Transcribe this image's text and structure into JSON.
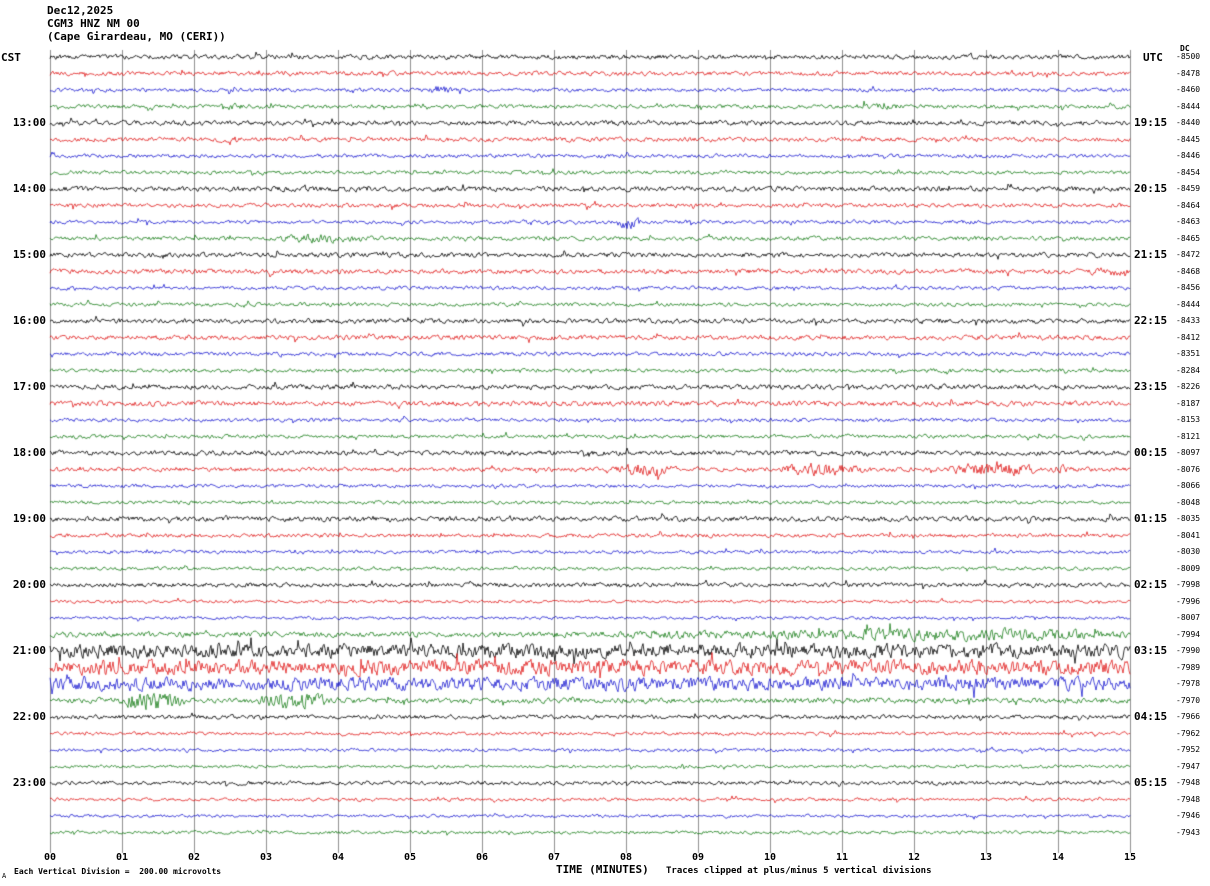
{
  "header": {
    "date": "Dec12,2025",
    "station": "CGM3 HNZ NM 00",
    "location": "(Cape Girardeau, MO (CERI))"
  },
  "axes": {
    "left_tz": "CST",
    "right_tz": "UTC",
    "dc_header": "DC",
    "minute_labels": [
      "00",
      "01",
      "02",
      "03",
      "04",
      "05",
      "06",
      "07",
      "08",
      "09",
      "10",
      "11",
      "12",
      "13",
      "14",
      "15"
    ],
    "xlabel": "TIME (MINUTES)",
    "clip_note": "Traces clipped at plus/minus 5 vertical divisions",
    "scale_note": "Each Vertical Division =  200.00 microvolts",
    "corner_mark": "A"
  },
  "chart_data": {
    "type": "line",
    "title": "CGM3 HNZ NM 00 (Cape Girardeau, MO (CERI)) helicorder Dec12,2025",
    "xlabel": "TIME (MINUTES)",
    "x_range_minutes": [
      0,
      15
    ],
    "rows": 48,
    "minutes_per_row": 15,
    "grid": true,
    "colors": {
      "black": "#000000",
      "red": "#dd0000",
      "blue": "#0000cc",
      "green": "#007000",
      "grid": "#909090"
    },
    "traces": [
      {
        "color": "black",
        "dc": -8500,
        "amp": 2.0,
        "bursts": []
      },
      {
        "color": "red",
        "dc": -8478,
        "amp": 1.9,
        "bursts": []
      },
      {
        "color": "blue",
        "dc": -8460,
        "amp": 1.6,
        "bursts": [
          {
            "s": 5.2,
            "e": 5.6,
            "a": 2.5
          }
        ]
      },
      {
        "color": "green",
        "dc": -8444,
        "amp": 1.7,
        "bursts": [
          {
            "s": 2.3,
            "e": 2.8,
            "a": 1.5
          },
          {
            "s": 11.0,
            "e": 12.0,
            "a": 1.2
          }
        ]
      },
      {
        "color": "black",
        "dc": -8440,
        "label_cst": "13:00",
        "label_utc": "19:15",
        "amp": 2.0,
        "bursts": []
      },
      {
        "color": "red",
        "dc": -8445,
        "amp": 1.9,
        "bursts": [
          {
            "s": 2.3,
            "e": 2.7,
            "a": 2.0
          }
        ]
      },
      {
        "color": "blue",
        "dc": -8446,
        "amp": 1.6,
        "bursts": []
      },
      {
        "color": "green",
        "dc": -8454,
        "amp": 1.6,
        "bursts": []
      },
      {
        "color": "black",
        "dc": -8459,
        "label_cst": "14:00",
        "label_utc": "20:15",
        "amp": 2.2,
        "bursts": []
      },
      {
        "color": "red",
        "dc": -8464,
        "amp": 1.8,
        "bursts": []
      },
      {
        "color": "blue",
        "dc": -8463,
        "amp": 1.6,
        "bursts": [
          {
            "s": 7.85,
            "e": 8.2,
            "a": 5.0
          }
        ]
      },
      {
        "color": "green",
        "dc": -8465,
        "amp": 1.8,
        "bursts": [
          {
            "s": 3.1,
            "e": 4.3,
            "a": 2.5
          }
        ]
      },
      {
        "color": "black",
        "dc": -8472,
        "label_cst": "15:00",
        "label_utc": "21:15",
        "amp": 2.1,
        "bursts": []
      },
      {
        "color": "red",
        "dc": -8468,
        "amp": 2.1,
        "bursts": [
          {
            "s": 14.4,
            "e": 15.0,
            "a": 2.0
          }
        ]
      },
      {
        "color": "blue",
        "dc": -8456,
        "amp": 1.6,
        "bursts": []
      },
      {
        "color": "green",
        "dc": -8444,
        "amp": 1.6,
        "bursts": []
      },
      {
        "color": "black",
        "dc": -8433,
        "label_cst": "16:00",
        "label_utc": "22:15",
        "amp": 2.1,
        "bursts": []
      },
      {
        "color": "red",
        "dc": -8412,
        "amp": 2.1,
        "bursts": []
      },
      {
        "color": "blue",
        "dc": -8351,
        "amp": 1.7,
        "bursts": []
      },
      {
        "color": "green",
        "dc": -8284,
        "amp": 1.6,
        "bursts": []
      },
      {
        "color": "black",
        "dc": -8226,
        "label_cst": "17:00",
        "label_utc": "23:15",
        "amp": 2.1,
        "bursts": []
      },
      {
        "color": "red",
        "dc": -8187,
        "amp": 2.2,
        "bursts": []
      },
      {
        "color": "blue",
        "dc": -8153,
        "amp": 1.6,
        "bursts": []
      },
      {
        "color": "green",
        "dc": -8121,
        "amp": 1.6,
        "bursts": []
      },
      {
        "color": "black",
        "dc": -8097,
        "label_cst": "18:00",
        "label_utc": "00:15",
        "amp": 2.1,
        "bursts": []
      },
      {
        "color": "red",
        "dc": -8076,
        "amp": 1.9,
        "bursts": [
          {
            "s": 7.8,
            "e": 8.7,
            "a": 4.5
          },
          {
            "s": 10.1,
            "e": 11.3,
            "a": 4.5
          },
          {
            "s": 12.5,
            "e": 13.7,
            "a": 6.0
          },
          {
            "s": 13.9,
            "e": 14.2,
            "a": 2.5
          }
        ]
      },
      {
        "color": "blue",
        "dc": -8066,
        "amp": 1.5,
        "bursts": []
      },
      {
        "color": "green",
        "dc": -8048,
        "amp": 1.5,
        "bursts": []
      },
      {
        "color": "black",
        "dc": -8035,
        "label_cst": "19:00",
        "label_utc": "01:15",
        "amp": 2.2,
        "bursts": []
      },
      {
        "color": "red",
        "dc": -8041,
        "amp": 1.7,
        "bursts": []
      },
      {
        "color": "blue",
        "dc": -8030,
        "amp": 1.5,
        "bursts": []
      },
      {
        "color": "green",
        "dc": -8009,
        "amp": 1.5,
        "bursts": []
      },
      {
        "color": "black",
        "dc": -7998,
        "label_cst": "20:00",
        "label_utc": "02:15",
        "amp": 1.9,
        "bursts": []
      },
      {
        "color": "red",
        "dc": -7996,
        "amp": 1.3,
        "bursts": []
      },
      {
        "color": "blue",
        "dc": -8007,
        "amp": 1.3,
        "bursts": []
      },
      {
        "color": "green",
        "dc": -7994,
        "amp": 2.3,
        "bursts": [
          {
            "s": 7.5,
            "e": 15.0,
            "a": 2.0
          },
          {
            "s": 11.0,
            "e": 15.0,
            "a": 2.0
          }
        ]
      },
      {
        "color": "black",
        "dc": -7990,
        "label_cst": "21:00",
        "label_utc": "03:15",
        "amp": 6.0,
        "bursts": []
      },
      {
        "color": "red",
        "dc": -7989,
        "amp": 6.5,
        "bursts": []
      },
      {
        "color": "blue",
        "dc": -7978,
        "amp": 5.8,
        "bursts": []
      },
      {
        "color": "green",
        "dc": -7970,
        "amp": 2.4,
        "bursts": [
          {
            "s": 0.9,
            "e": 1.9,
            "a": 8.0
          },
          {
            "s": 2.9,
            "e": 3.9,
            "a": 6.0
          }
        ]
      },
      {
        "color": "black",
        "dc": -7966,
        "label_cst": "22:00",
        "label_utc": "04:15",
        "amp": 1.8,
        "bursts": []
      },
      {
        "color": "red",
        "dc": -7962,
        "amp": 1.4,
        "bursts": []
      },
      {
        "color": "blue",
        "dc": -7952,
        "amp": 1.4,
        "bursts": []
      },
      {
        "color": "green",
        "dc": -7947,
        "amp": 1.3,
        "bursts": []
      },
      {
        "color": "black",
        "dc": -7948,
        "label_cst": "23:00",
        "label_utc": "05:15",
        "amp": 1.7,
        "bursts": []
      },
      {
        "color": "red",
        "dc": -7948,
        "amp": 1.4,
        "bursts": []
      },
      {
        "color": "blue",
        "dc": -7946,
        "amp": 1.3,
        "bursts": []
      },
      {
        "color": "green",
        "dc": -7943,
        "amp": 1.4,
        "bursts": []
      }
    ]
  }
}
